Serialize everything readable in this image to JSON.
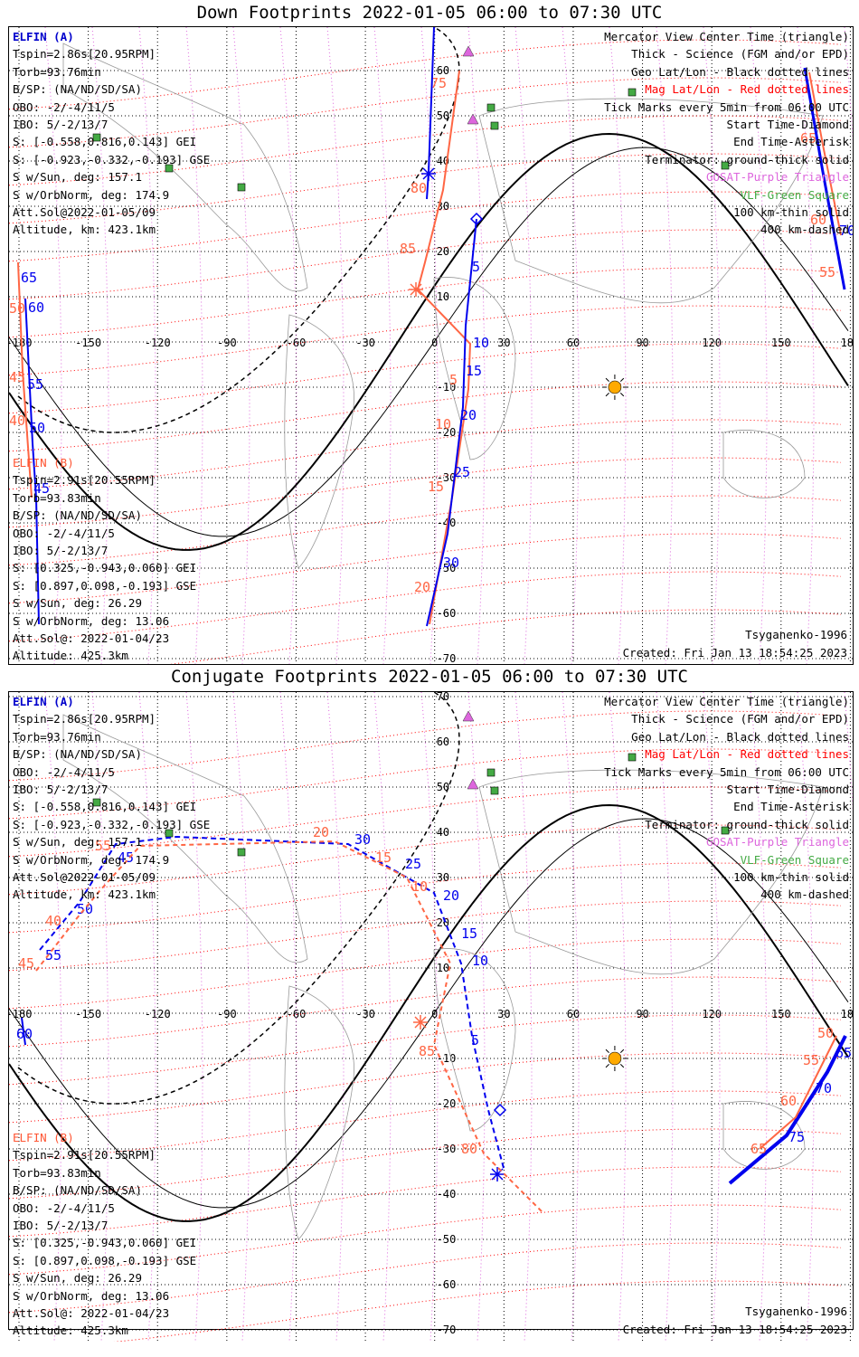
{
  "panels": [
    {
      "title": "Down Footprints 2022-01-05 06:00 to 07:30 UTC",
      "elfin_a": {
        "header": "ELFIN (A)",
        "lines": [
          "Tspin=2.86s[20.95RPM]",
          "Torb=93.76min",
          "B/SP: (NA/ND/SD/SA)",
          "OBO: -2/-4/11/5",
          "IBO: 5/-2/13/7",
          "S: [-0.558,0.816,0.143] GEI",
          "S: [-0.923,-0.332,-0.193] GSE",
          "S w/Sun, deg: 157.1",
          "S w/OrbNorm, deg: 174.9",
          "Att.Sol@2022-01-05/09",
          "Altitude, km: 423.1km"
        ]
      },
      "elfin_b": {
        "header": "ELFIN (B)",
        "lines": [
          "Tspin=2.91s[20.55RPM]",
          "Torb=93.83min",
          "B/SP: (NA/ND/SD/SA)",
          "OBO: -2/-4/11/5",
          "IBO: 5/-2/13/7",
          "S: [0.325,-0.943,0.060] GEI",
          "S: [0.897,0.098,-0.193] GSE",
          "S w/Sun, deg: 26.29",
          "S w/OrbNorm, deg: 13.06",
          "Att.Sol@: 2022-01-04/23",
          "Altitude: 425.3km"
        ]
      },
      "credit_model": "Tsyganenko-1996",
      "credit_created": "Created: Fri Jan 13 18:54:25 2023"
    },
    {
      "title": "Conjugate Footprints 2022-01-05 06:00 to 07:30 UTC",
      "elfin_a": {
        "header": "ELFIN (A)",
        "lines": [
          "Tspin=2.86s[20.95RPM]",
          "Torb=93.76min",
          "B/SP: (NA/ND/SD/SA)",
          "OBO: -2/-4/11/5",
          "IBO: 5/-2/13/7",
          "S: [-0.558,0.816,0.143] GEI",
          "S: [-0.923,-0.332,-0.193] GSE",
          "S w/Sun, deg: 157.1",
          "S w/OrbNorm, deg: 174.9",
          "Att.Sol@2022-01-05/09",
          "Altitude, km: 423.1km"
        ]
      },
      "elfin_b": {
        "header": "ELFIN (B)",
        "lines": [
          "Tspin=2.91s[20.55RPM]",
          "Torb=93.83min",
          "B/SP: (NA/ND/SD/SA)",
          "OBO: -2/-4/11/5",
          "IBO: 5/-2/13/7",
          "S: [0.325,-0.943,0.060] GEI",
          "S: [0.897,0.098,-0.193] GSE",
          "S w/Sun, deg: 26.29",
          "S w/OrbNorm, deg: 13.06",
          "Att.Sol@: 2022-01-04/23",
          "Altitude: 425.3km"
        ]
      },
      "credit_model": "Tsyganenko-1996",
      "credit_created": "Created: Fri Jan 13 18:54:25 2023"
    }
  ],
  "legend": [
    {
      "text": "Mercator View Center Time (triangle)",
      "color": "#000000"
    },
    {
      "text": "Thick - Science (FGM and/or EPD)",
      "color": "#000000"
    },
    {
      "text": "Geo Lat/Lon - Black dotted lines",
      "color": "#000000"
    },
    {
      "text": "Mag Lat/Lon - Red dotted lines",
      "color": "#ff0000"
    },
    {
      "text": "Tick Marks every 5min from 06:00 UTC",
      "color": "#000000"
    },
    {
      "text": "Start Time-Diamond",
      "color": "#000000"
    },
    {
      "text": "End Time-Asterisk",
      "color": "#000000"
    },
    {
      "text": "Terminator: ground-thick solid",
      "color": "#000000"
    },
    {
      "text": "GOSAT-Purple Triangle",
      "color": "#dd66dd"
    },
    {
      "text": "VLF-Green Square",
      "color": "#44aa44"
    },
    {
      "text": "100 km-thin solid",
      "color": "#000000"
    },
    {
      "text": "400 km-dashed",
      "color": "#000000"
    }
  ],
  "axes": {
    "lon_ticks": [
      "-180",
      "-150",
      "-120",
      "-90",
      "-60",
      "-30",
      "0",
      "30",
      "60",
      "90",
      "120",
      "150",
      "180"
    ],
    "lat_ticks": [
      "70",
      "60",
      "50",
      "40",
      "30",
      "20",
      "10",
      "-10",
      "-20",
      "-30",
      "-40",
      "-50",
      "-60",
      "-70"
    ]
  },
  "colors": {
    "elfin_a": "#0000ee",
    "elfin_b": "#ff6644",
    "mag_grid": "#ff0000",
    "geo_grid": "#000000",
    "gosat": "#dd66dd",
    "vlf": "#44aa44",
    "sun": "#ffaa00"
  },
  "chart_data": [
    {
      "type": "map",
      "title": "Down Footprints 2022-01-05 06:00 to 07:30 UTC",
      "projection": "mercator",
      "xlim": [
        -180,
        180
      ],
      "series": [
        {
          "name": "ELFIN (A)",
          "tick_labels": [
            "5",
            "10",
            "15",
            "20",
            "25",
            "30",
            "65",
            "60",
            "55",
            "50",
            "45",
            "40",
            "70",
            "75"
          ],
          "path_lonlat": [
            [
              -174,
              35
            ],
            [
              -176,
              20
            ],
            [
              -178,
              0
            ],
            [
              -176,
              -20
            ],
            [
              -172,
              -45
            ],
            [
              -170,
              -65
            ]
          ]
        },
        {
          "name": "ELFIN (B)",
          "tick_labels": [
            "75",
            "80",
            "85",
            "5",
            "10",
            "15",
            "20",
            "60",
            "55",
            "50",
            "45",
            "40"
          ],
          "path_lonlat": [
            [
              0,
              75
            ],
            [
              -3,
              60
            ],
            [
              -5,
              45
            ],
            [
              -7,
              27
            ],
            [
              10,
              0
            ],
            [
              7,
              -30
            ],
            [
              2,
              -68
            ]
          ]
        }
      ],
      "terminator": "ground-thick solid",
      "sun_lonlat": [
        78,
        -10
      ]
    },
    {
      "type": "map",
      "title": "Conjugate Footprints 2022-01-05 06:00 to 07:30 UTC",
      "projection": "mercator",
      "xlim": [
        -180,
        180
      ],
      "series": [
        {
          "name": "ELFIN (A)",
          "tick_labels": [
            "45",
            "50",
            "55",
            "60",
            "30",
            "25",
            "20",
            "15",
            "10",
            "5",
            "65",
            "70",
            "75"
          ],
          "path_lonlat": [
            [
              -130,
              52
            ],
            [
              -150,
              40
            ],
            [
              -170,
              25
            ],
            [
              -60,
              55
            ],
            [
              0,
              40
            ],
            [
              18,
              20
            ],
            [
              26,
              -40
            ],
            [
              31,
              -58
            ]
          ]
        },
        {
          "name": "ELFIN (B)",
          "tick_labels": [
            "20",
            "15",
            "10",
            "5",
            "40",
            "45",
            "50",
            "55",
            "60",
            "65",
            "85",
            "80"
          ],
          "path_lonlat": [
            [
              -45,
              57
            ],
            [
              0,
              38
            ],
            [
              -10,
              -20
            ],
            [
              20,
              -55
            ],
            [
              160,
              -15
            ],
            [
              150,
              -50
            ]
          ]
        }
      ],
      "terminator": "ground-thick solid",
      "sun_lonlat": [
        78,
        -10
      ]
    }
  ]
}
